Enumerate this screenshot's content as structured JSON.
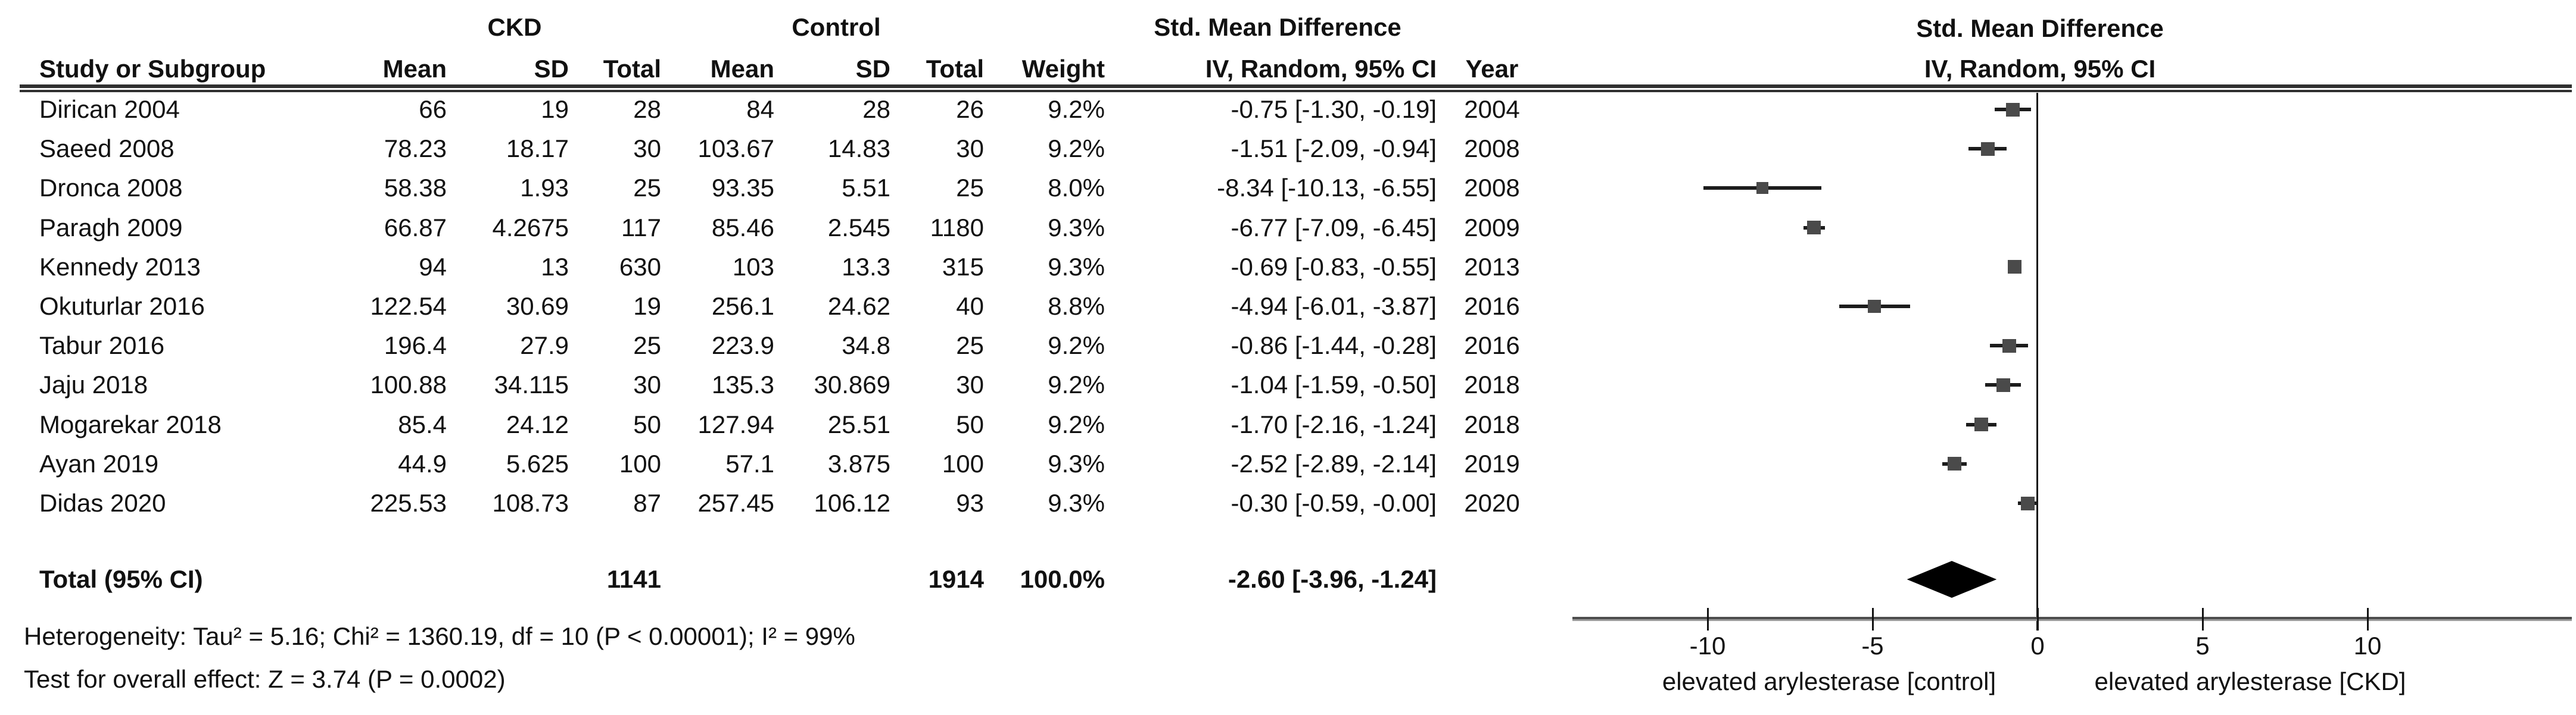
{
  "table": {
    "group_headers": {
      "ckd": "CKD",
      "control": "Control",
      "smd": "Std. Mean Difference"
    },
    "col_headers": {
      "study": "Study or Subgroup",
      "ckd_mean": "Mean",
      "ckd_sd": "SD",
      "ckd_total": "Total",
      "ctrl_mean": "Mean",
      "ctrl_sd": "SD",
      "ctrl_total": "Total",
      "weight": "Weight",
      "ci": "IV, Random, 95% CI",
      "year": "Year"
    },
    "footnotes": {
      "heterogeneity": "Heterogeneity: Tau² = 5.16; Chi² = 1360.19, df = 10 (P < 0.00001); I² = 99%",
      "overall_effect": "Test for overall effect: Z = 3.74 (P = 0.0002)"
    }
  },
  "plot": {
    "header_line1": "Std. Mean Difference",
    "header_line2": "IV, Random, 95% CI",
    "axis_label_left": "elevated arylesterase [control]",
    "axis_label_right": "elevated arylesterase [CKD]"
  },
  "colors": {
    "square": "#4a4a4a",
    "ci_line": "#1c1c1c",
    "diamond": "#000000",
    "rule": "#303030",
    "axis_dark": "#4d4d4d",
    "axis_light": "#9c9c9c"
  },
  "chart_data": {
    "type": "forest",
    "title": "Std. Mean Difference, IV, Random, 95% CI",
    "x_ticks": [
      -10,
      -5,
      0,
      5,
      10
    ],
    "xlim": [
      -14.1,
      16.2
    ],
    "zero_reference": 0,
    "axis_caption_left": "elevated arylesterase [control]",
    "axis_caption_right": "elevated arylesterase [CKD]",
    "studies": [
      {
        "name": "Dirican 2004",
        "ckd_mean": "66",
        "ckd_sd": "19",
        "ckd_total": "28",
        "ctrl_mean": "84",
        "ctrl_sd": "28",
        "ctrl_total": "26",
        "weight": "9.2%",
        "weight_pct": 9.2,
        "smd": -0.75,
        "ci_low": -1.3,
        "ci_high": -0.19,
        "ci_text": "-0.75 [-1.30, -0.19]",
        "year": "2004"
      },
      {
        "name": "Saeed 2008",
        "ckd_mean": "78.23",
        "ckd_sd": "18.17",
        "ckd_total": "30",
        "ctrl_mean": "103.67",
        "ctrl_sd": "14.83",
        "ctrl_total": "30",
        "weight": "9.2%",
        "weight_pct": 9.2,
        "smd": -1.51,
        "ci_low": -2.09,
        "ci_high": -0.94,
        "ci_text": "-1.51 [-2.09, -0.94]",
        "year": "2008"
      },
      {
        "name": "Dronca 2008",
        "ckd_mean": "58.38",
        "ckd_sd": "1.93",
        "ckd_total": "25",
        "ctrl_mean": "93.35",
        "ctrl_sd": "5.51",
        "ctrl_total": "25",
        "weight": "8.0%",
        "weight_pct": 8.0,
        "smd": -8.34,
        "ci_low": -10.13,
        "ci_high": -6.55,
        "ci_text": "-8.34 [-10.13, -6.55]",
        "year": "2008"
      },
      {
        "name": "Paragh 2009",
        "ckd_mean": "66.87",
        "ckd_sd": "4.2675",
        "ckd_total": "117",
        "ctrl_mean": "85.46",
        "ctrl_sd": "2.545",
        "ctrl_total": "1180",
        "weight": "9.3%",
        "weight_pct": 9.3,
        "smd": -6.77,
        "ci_low": -7.09,
        "ci_high": -6.45,
        "ci_text": "-6.77 [-7.09, -6.45]",
        "year": "2009"
      },
      {
        "name": "Kennedy 2013",
        "ckd_mean": "94",
        "ckd_sd": "13",
        "ckd_total": "630",
        "ctrl_mean": "103",
        "ctrl_sd": "13.3",
        "ctrl_total": "315",
        "weight": "9.3%",
        "weight_pct": 9.3,
        "smd": -0.69,
        "ci_low": -0.83,
        "ci_high": -0.55,
        "ci_text": "-0.69 [-0.83, -0.55]",
        "year": "2013"
      },
      {
        "name": "Okuturlar 2016",
        "ckd_mean": "122.54",
        "ckd_sd": "30.69",
        "ckd_total": "19",
        "ctrl_mean": "256.1",
        "ctrl_sd": "24.62",
        "ctrl_total": "40",
        "weight": "8.8%",
        "weight_pct": 8.8,
        "smd": -4.94,
        "ci_low": -6.01,
        "ci_high": -3.87,
        "ci_text": "-4.94 [-6.01, -3.87]",
        "year": "2016"
      },
      {
        "name": "Tabur 2016",
        "ckd_mean": "196.4",
        "ckd_sd": "27.9",
        "ckd_total": "25",
        "ctrl_mean": "223.9",
        "ctrl_sd": "34.8",
        "ctrl_total": "25",
        "weight": "9.2%",
        "weight_pct": 9.2,
        "smd": -0.86,
        "ci_low": -1.44,
        "ci_high": -0.28,
        "ci_text": "-0.86 [-1.44, -0.28]",
        "year": "2016"
      },
      {
        "name": "Jaju 2018",
        "ckd_mean": "100.88",
        "ckd_sd": "34.115",
        "ckd_total": "30",
        "ctrl_mean": "135.3",
        "ctrl_sd": "30.869",
        "ctrl_total": "30",
        "weight": "9.2%",
        "weight_pct": 9.2,
        "smd": -1.04,
        "ci_low": -1.59,
        "ci_high": -0.5,
        "ci_text": "-1.04 [-1.59, -0.50]",
        "year": "2018"
      },
      {
        "name": "Mogarekar 2018",
        "ckd_mean": "85.4",
        "ckd_sd": "24.12",
        "ckd_total": "50",
        "ctrl_mean": "127.94",
        "ctrl_sd": "25.51",
        "ctrl_total": "50",
        "weight": "9.2%",
        "weight_pct": 9.2,
        "smd": -1.7,
        "ci_low": -2.16,
        "ci_high": -1.24,
        "ci_text": "-1.70 [-2.16, -1.24]",
        "year": "2018"
      },
      {
        "name": "Ayan 2019",
        "ckd_mean": "44.9",
        "ckd_sd": "5.625",
        "ckd_total": "100",
        "ctrl_mean": "57.1",
        "ctrl_sd": "3.875",
        "ctrl_total": "100",
        "weight": "9.3%",
        "weight_pct": 9.3,
        "smd": -2.52,
        "ci_low": -2.89,
        "ci_high": -2.14,
        "ci_text": "-2.52 [-2.89, -2.14]",
        "year": "2019"
      },
      {
        "name": "Didas 2020",
        "ckd_mean": "225.53",
        "ckd_sd": "108.73",
        "ckd_total": "87",
        "ctrl_mean": "257.45",
        "ctrl_sd": "106.12",
        "ctrl_total": "93",
        "weight": "9.3%",
        "weight_pct": 9.3,
        "smd": -0.3,
        "ci_low": -0.59,
        "ci_high": 0,
        "ci_text": "-0.30 [-0.59, -0.00]",
        "year": "2020"
      }
    ],
    "total": {
      "label": "Total (95% CI)",
      "ckd_total": "1141",
      "ctrl_total": "1914",
      "weight": "100.0%",
      "smd": -2.6,
      "ci_low": -3.96,
      "ci_high": -1.24,
      "ci_text": "-2.60 [-3.96, -1.24]"
    }
  }
}
